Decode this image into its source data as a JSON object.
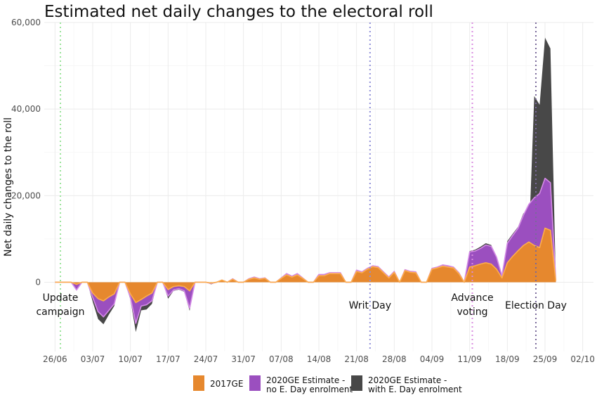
{
  "chart_data": {
    "type": "area",
    "title": "Estimated net daily changes to the electoral roll",
    "xlabel": "",
    "ylabel": "Net daily changes to the roll",
    "ylim": [
      -16000,
      60000
    ],
    "y_ticks": [
      0,
      20000,
      40000,
      60000
    ],
    "y_tick_labels": [
      "0",
      "20,000",
      "40,000",
      "60,000"
    ],
    "x_tick_labels": [
      "26/06",
      "03/07",
      "10/07",
      "17/07",
      "24/07",
      "31/07",
      "07/08",
      "14/08",
      "21/08",
      "28/08",
      "04/09",
      "11/09",
      "18/09",
      "25/09",
      "02/10"
    ],
    "x_ticks_day": [
      0,
      7,
      14,
      21,
      28,
      35,
      42,
      49,
      56,
      63,
      70,
      77,
      84,
      91,
      98
    ],
    "x_axis_start": "2020-06-26",
    "grid": true,
    "legend_position": "bottom",
    "colors": {
      "2017GE": "#e6882e",
      "2017GE_light": "#fdae4b",
      "no_eday": "#9b4fbf",
      "no_eday_light": "#d48be6",
      "with_eday": "#484848"
    },
    "legend": [
      {
        "key": "2017GE",
        "label_lines": [
          "2017GE"
        ]
      },
      {
        "key": "no_eday",
        "label_lines": [
          "2020GE Estimate -",
          "no E. Day enrolment"
        ]
      },
      {
        "key": "with_eday",
        "label_lines": [
          "2020GE Estimate -",
          "with E. Day enrolment"
        ]
      }
    ],
    "vlines": [
      {
        "day": 1.0,
        "color": "#9be39b",
        "label_lines": [
          "Update",
          "campaign"
        ]
      },
      {
        "day": 58.5,
        "color": "#8f8fd8",
        "label_lines": [
          "Writ Day"
        ]
      },
      {
        "day": 77.5,
        "color": "#d98be0",
        "label_lines": [
          "Advance",
          "voting"
        ]
      },
      {
        "day": 89.3,
        "color": "#7a6a9a",
        "label_lines": [
          "Election Day"
        ]
      }
    ],
    "series": [
      {
        "name": "2020GE Estimate - with E. Day enrolment",
        "key": "with_eday",
        "points": [
          [
            0,
            0
          ],
          [
            3,
            0
          ],
          [
            4,
            -1800
          ],
          [
            5,
            0
          ],
          [
            6,
            0
          ],
          [
            7,
            -4500
          ],
          [
            8,
            -8500
          ],
          [
            9,
            -9700
          ],
          [
            10,
            -7500
          ],
          [
            11,
            -5500
          ],
          [
            12,
            0
          ],
          [
            13,
            0
          ],
          [
            14,
            -4000
          ],
          [
            15,
            -11500
          ],
          [
            16,
            -6500
          ],
          [
            17,
            -6300
          ],
          [
            18,
            -5000
          ],
          [
            19,
            0
          ],
          [
            20,
            0
          ],
          [
            21,
            -3800
          ],
          [
            22,
            -2000
          ],
          [
            23,
            -1700
          ],
          [
            24,
            -2200
          ],
          [
            25,
            -6600
          ],
          [
            26,
            0
          ],
          [
            28,
            0
          ],
          [
            29,
            -500
          ],
          [
            30,
            0
          ],
          [
            31,
            500
          ],
          [
            32,
            0
          ],
          [
            33,
            800
          ],
          [
            34,
            0
          ],
          [
            35,
            0
          ],
          [
            36,
            800
          ],
          [
            37,
            1200
          ],
          [
            38,
            800
          ],
          [
            39,
            1000
          ],
          [
            40,
            0
          ],
          [
            41,
            0
          ],
          [
            42,
            1000
          ],
          [
            43,
            2000
          ],
          [
            44,
            1400
          ],
          [
            45,
            2000
          ],
          [
            46,
            1000
          ],
          [
            47,
            0
          ],
          [
            48,
            0
          ],
          [
            49,
            1800
          ],
          [
            50,
            1800
          ],
          [
            51,
            2200
          ],
          [
            52,
            2200
          ],
          [
            53,
            2200
          ],
          [
            54,
            0
          ],
          [
            55,
            0
          ],
          [
            56,
            2800
          ],
          [
            57,
            2400
          ],
          [
            58,
            3200
          ],
          [
            59,
            3800
          ],
          [
            60,
            3600
          ],
          [
            61,
            2400
          ],
          [
            62,
            1200
          ],
          [
            63,
            2500
          ],
          [
            64,
            0
          ],
          [
            65,
            2900
          ],
          [
            66,
            2500
          ],
          [
            67,
            2400
          ],
          [
            68,
            0
          ],
          [
            69,
            0
          ],
          [
            70,
            3200
          ],
          [
            71,
            3500
          ],
          [
            72,
            4000
          ],
          [
            73,
            3800
          ],
          [
            74,
            3500
          ],
          [
            75,
            2200
          ],
          [
            76,
            0
          ],
          [
            77,
            7200
          ],
          [
            78,
            7500
          ],
          [
            79,
            8200
          ],
          [
            80,
            9000
          ],
          [
            81,
            8600
          ],
          [
            82,
            6000
          ],
          [
            83,
            1500
          ],
          [
            84,
            9500
          ],
          [
            85,
            11200
          ],
          [
            86,
            12800
          ],
          [
            87,
            16000
          ],
          [
            88,
            9500
          ],
          [
            89,
            43000
          ],
          [
            90,
            41000
          ],
          [
            91,
            56500
          ],
          [
            92,
            54000
          ],
          [
            93,
            600
          ]
        ]
      },
      {
        "name": "2020GE Estimate - no E. Day enrolment",
        "key": "no_eday",
        "points": [
          [
            0,
            0
          ],
          [
            3,
            0
          ],
          [
            4,
            -1800
          ],
          [
            5,
            0
          ],
          [
            6,
            0
          ],
          [
            7,
            -3500
          ],
          [
            8,
            -6800
          ],
          [
            9,
            -8000
          ],
          [
            10,
            -6500
          ],
          [
            11,
            -5000
          ],
          [
            12,
            0
          ],
          [
            13,
            0
          ],
          [
            14,
            -3500
          ],
          [
            15,
            -9500
          ],
          [
            16,
            -5500
          ],
          [
            17,
            -5200
          ],
          [
            18,
            -4300
          ],
          [
            19,
            0
          ],
          [
            20,
            0
          ],
          [
            21,
            -3200
          ],
          [
            22,
            -1800
          ],
          [
            23,
            -1500
          ],
          [
            24,
            -2000
          ],
          [
            25,
            -6000
          ],
          [
            26,
            0
          ],
          [
            28,
            0
          ],
          [
            29,
            -300
          ],
          [
            30,
            0
          ],
          [
            31,
            500
          ],
          [
            32,
            0
          ],
          [
            33,
            800
          ],
          [
            34,
            0
          ],
          [
            35,
            0
          ],
          [
            36,
            800
          ],
          [
            37,
            1200
          ],
          [
            38,
            800
          ],
          [
            39,
            1000
          ],
          [
            40,
            0
          ],
          [
            41,
            0
          ],
          [
            42,
            1000
          ],
          [
            43,
            2000
          ],
          [
            44,
            1400
          ],
          [
            45,
            2000
          ],
          [
            46,
            1000
          ],
          [
            47,
            0
          ],
          [
            48,
            0
          ],
          [
            49,
            1800
          ],
          [
            50,
            1800
          ],
          [
            51,
            2200
          ],
          [
            52,
            2200
          ],
          [
            53,
            2200
          ],
          [
            54,
            0
          ],
          [
            55,
            0
          ],
          [
            56,
            2800
          ],
          [
            57,
            2400
          ],
          [
            58,
            3200
          ],
          [
            59,
            3800
          ],
          [
            60,
            3600
          ],
          [
            61,
            2400
          ],
          [
            62,
            1200
          ],
          [
            63,
            2500
          ],
          [
            64,
            0
          ],
          [
            65,
            2900
          ],
          [
            66,
            2500
          ],
          [
            67,
            2400
          ],
          [
            68,
            0
          ],
          [
            69,
            0
          ],
          [
            70,
            3200
          ],
          [
            71,
            3500
          ],
          [
            72,
            4000
          ],
          [
            73,
            3800
          ],
          [
            74,
            3500
          ],
          [
            75,
            2200
          ],
          [
            76,
            0
          ],
          [
            77,
            7000
          ],
          [
            78,
            7200
          ],
          [
            79,
            7800
          ],
          [
            80,
            8600
          ],
          [
            81,
            8300
          ],
          [
            82,
            5800
          ],
          [
            83,
            1500
          ],
          [
            84,
            9000
          ],
          [
            85,
            10800
          ],
          [
            86,
            12500
          ],
          [
            87,
            15500
          ],
          [
            88,
            18000
          ],
          [
            89,
            19500
          ],
          [
            90,
            20500
          ],
          [
            91,
            24000
          ],
          [
            92,
            23000
          ],
          [
            93,
            500
          ]
        ]
      },
      {
        "name": "2017GE",
        "key": "2017GE",
        "points": [
          [
            0,
            0
          ],
          [
            3,
            0
          ],
          [
            4,
            -500
          ],
          [
            5,
            0
          ],
          [
            6,
            0
          ],
          [
            7,
            -2500
          ],
          [
            8,
            -3800
          ],
          [
            9,
            -4300
          ],
          [
            10,
            -3400
          ],
          [
            11,
            -2700
          ],
          [
            12,
            0
          ],
          [
            13,
            0
          ],
          [
            14,
            -2700
          ],
          [
            15,
            -4700
          ],
          [
            16,
            -4000
          ],
          [
            17,
            -3200
          ],
          [
            18,
            -2500
          ],
          [
            19,
            0
          ],
          [
            20,
            0
          ],
          [
            21,
            -1700
          ],
          [
            22,
            -1000
          ],
          [
            23,
            -800
          ],
          [
            24,
            -1000
          ],
          [
            25,
            -2000
          ],
          [
            26,
            0
          ],
          [
            28,
            0
          ],
          [
            29,
            -200
          ],
          [
            30,
            0
          ],
          [
            31,
            500
          ],
          [
            32,
            0
          ],
          [
            33,
            700
          ],
          [
            34,
            0
          ],
          [
            35,
            0
          ],
          [
            36,
            700
          ],
          [
            37,
            1000
          ],
          [
            38,
            700
          ],
          [
            39,
            900
          ],
          [
            40,
            0
          ],
          [
            41,
            0
          ],
          [
            42,
            900
          ],
          [
            43,
            1700
          ],
          [
            44,
            1200
          ],
          [
            45,
            1700
          ],
          [
            46,
            900
          ],
          [
            47,
            0
          ],
          [
            48,
            0
          ],
          [
            49,
            1500
          ],
          [
            50,
            1500
          ],
          [
            51,
            2000
          ],
          [
            52,
            2000
          ],
          [
            53,
            2000
          ],
          [
            54,
            0
          ],
          [
            55,
            0
          ],
          [
            56,
            2500
          ],
          [
            57,
            2200
          ],
          [
            58,
            3000
          ],
          [
            59,
            3600
          ],
          [
            60,
            3400
          ],
          [
            61,
            2200
          ],
          [
            62,
            1000
          ],
          [
            63,
            2300
          ],
          [
            64,
            0
          ],
          [
            65,
            2700
          ],
          [
            66,
            2300
          ],
          [
            67,
            2200
          ],
          [
            68,
            0
          ],
          [
            69,
            0
          ],
          [
            70,
            3000
          ],
          [
            71,
            3300
          ],
          [
            72,
            3700
          ],
          [
            73,
            3500
          ],
          [
            74,
            3300
          ],
          [
            75,
            2000
          ],
          [
            76,
            0
          ],
          [
            77,
            3500
          ],
          [
            78,
            3800
          ],
          [
            79,
            4200
          ],
          [
            80,
            4500
          ],
          [
            81,
            4200
          ],
          [
            82,
            3000
          ],
          [
            83,
            1000
          ],
          [
            84,
            4500
          ],
          [
            85,
            6000
          ],
          [
            86,
            7300
          ],
          [
            87,
            8500
          ],
          [
            88,
            9300
          ],
          [
            89,
            8500
          ],
          [
            90,
            8000
          ],
          [
            91,
            12500
          ],
          [
            92,
            12000
          ],
          [
            93,
            300
          ]
        ]
      }
    ]
  }
}
